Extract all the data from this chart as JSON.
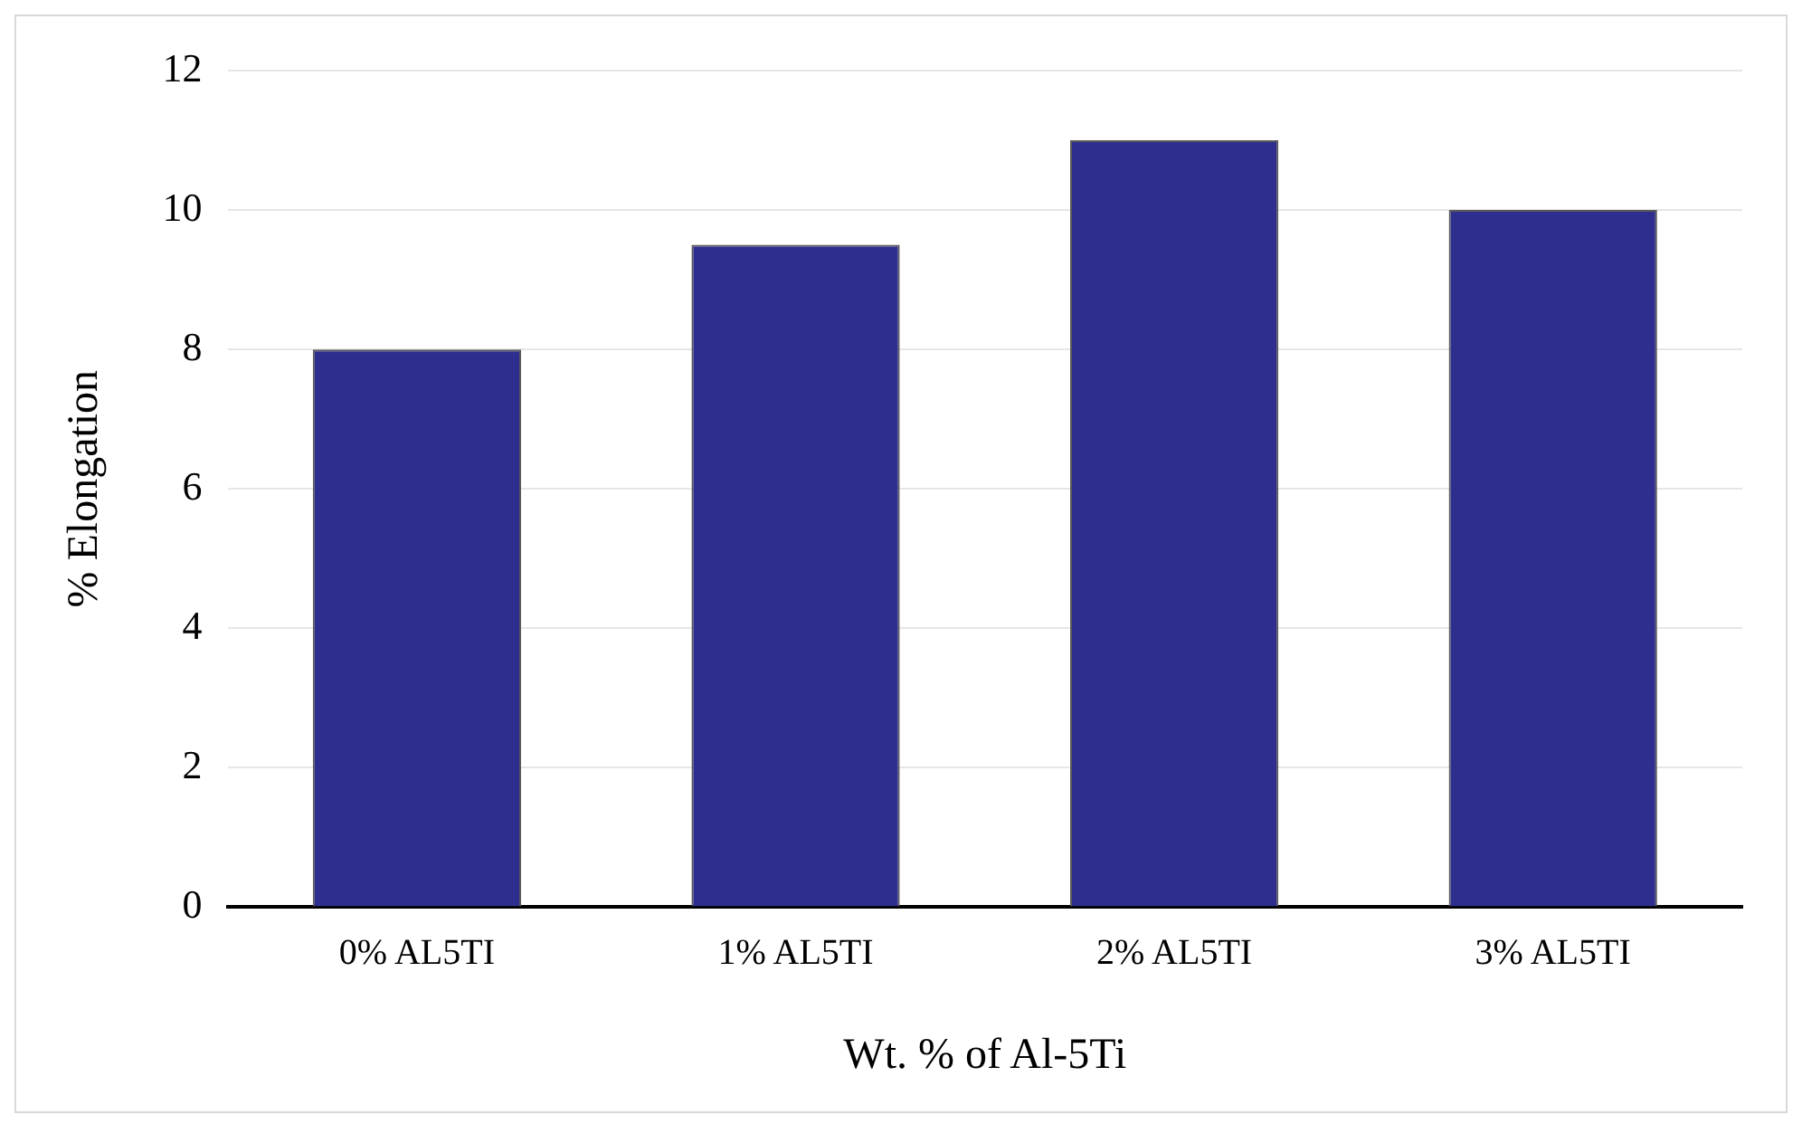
{
  "chart_data": {
    "type": "bar",
    "xlabel": "Wt. % of Al-5Ti",
    "ylabel": "% Elongation",
    "categories": [
      "0% AL5TI",
      "1% AL5TI",
      "2% AL5TI",
      "3% AL5TI"
    ],
    "values": [
      8,
      9.5,
      11,
      10
    ],
    "color": "#2e2e8e",
    "ylim": [
      0,
      12
    ],
    "yticks": [
      0,
      2,
      4,
      6,
      8,
      10,
      12
    ],
    "grid": "y",
    "legend": false
  }
}
